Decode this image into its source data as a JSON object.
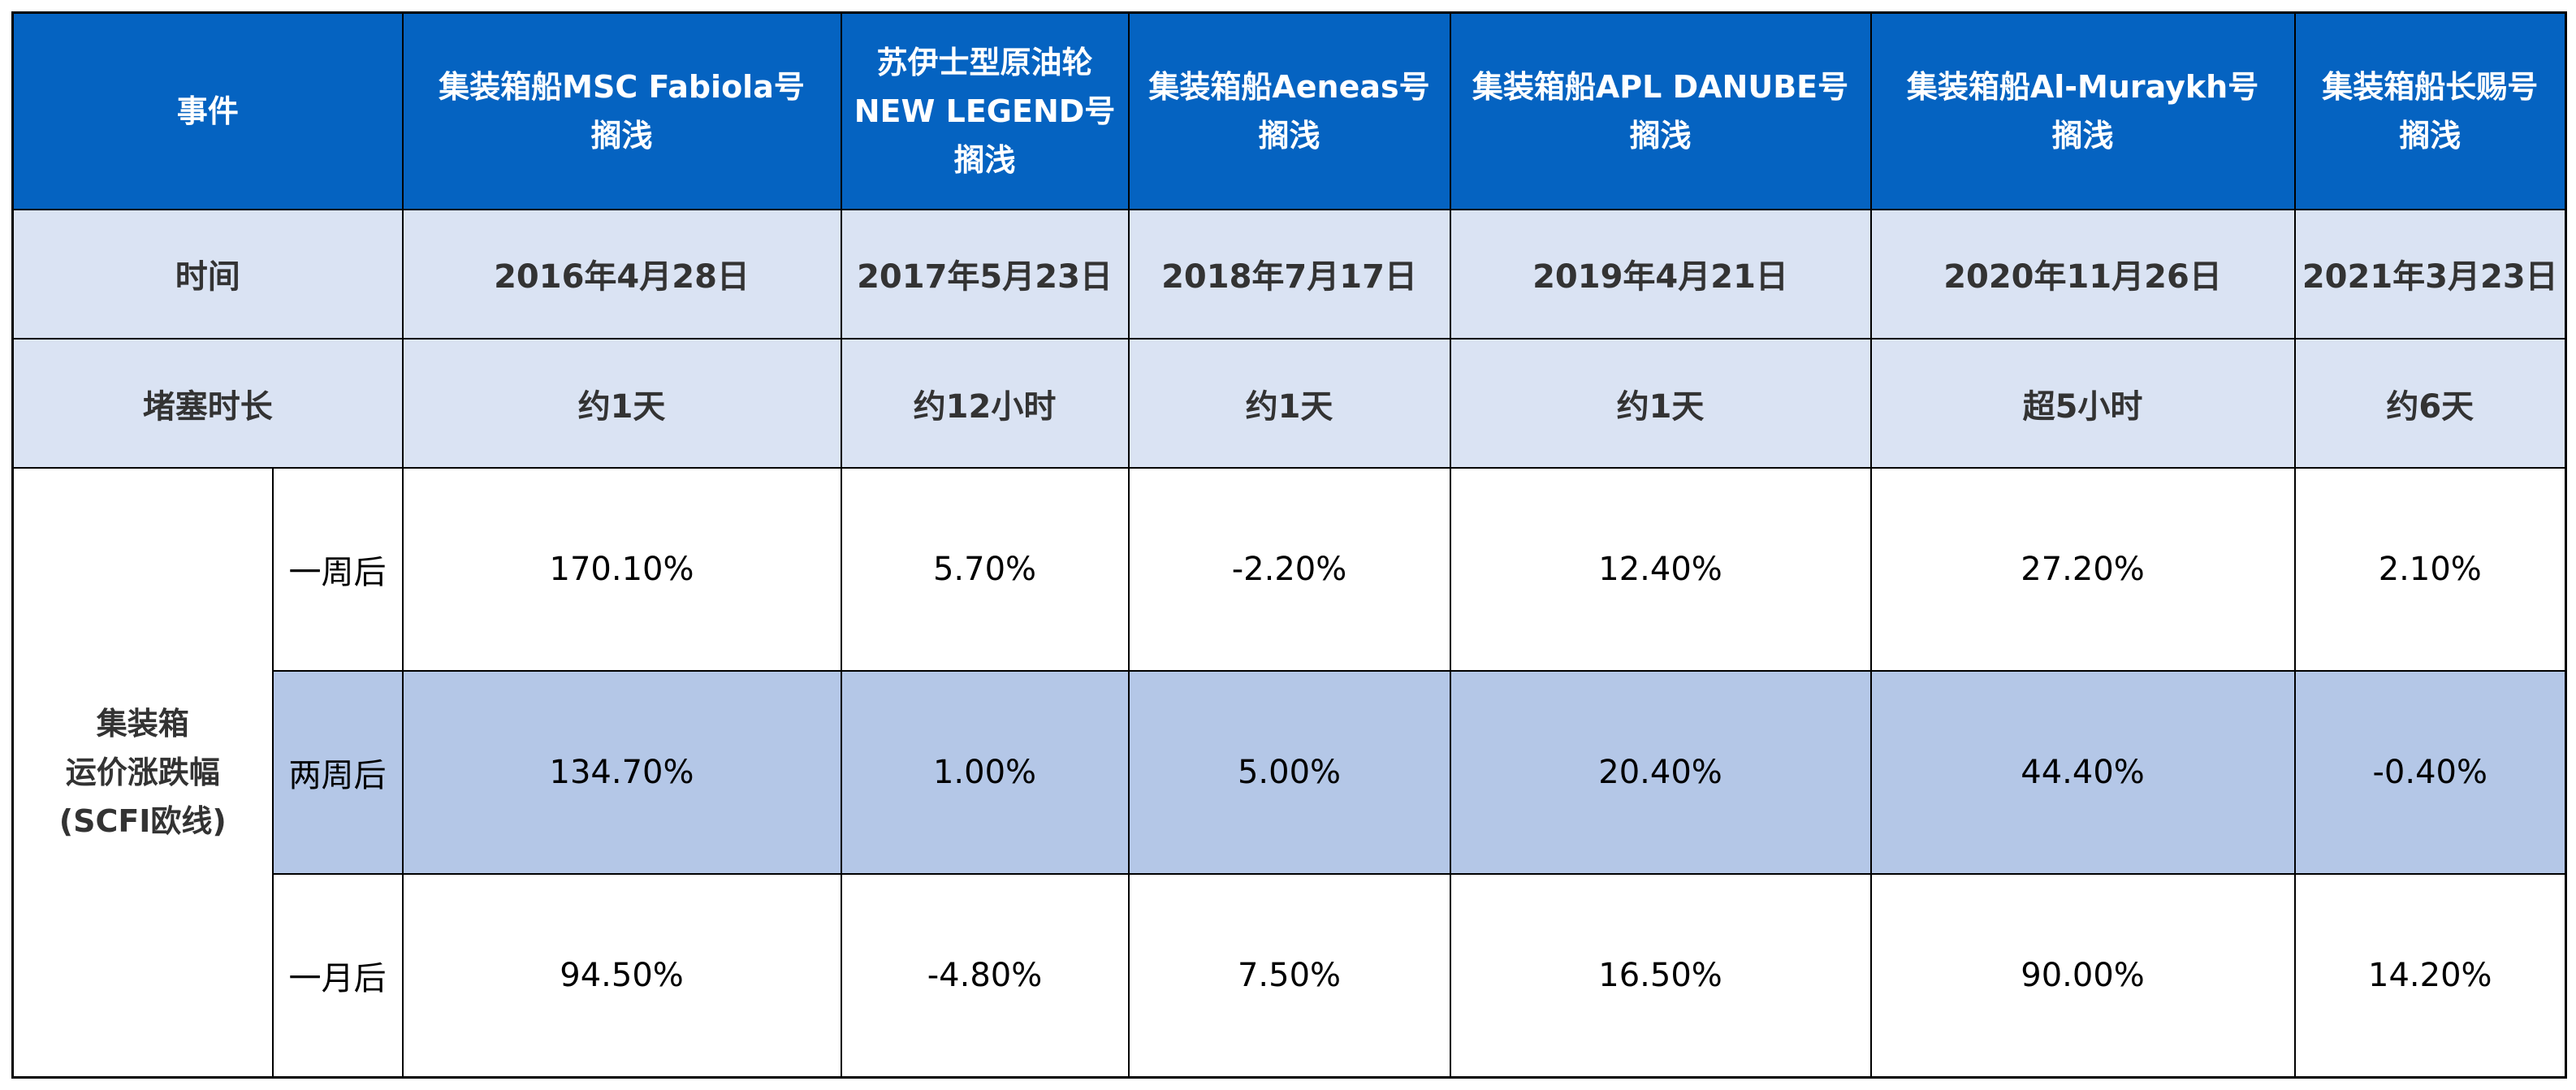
{
  "header": {
    "event_label": "事件",
    "columns": [
      "集装箱船MSC Fabiola号\n搁浅",
      "苏伊士型原油轮\nNEW LEGEND号\n搁浅",
      "集装箱船Aeneas号\n搁浅",
      "集装箱船APL DANUBE号\n搁浅",
      "集装箱船Al-Muraykh号\n搁浅",
      "集装箱船长赐号\n搁浅"
    ]
  },
  "time_row": {
    "label": "时间",
    "values": [
      "2016年4月28日",
      "2017年5月23日",
      "2018年7月17日",
      "2019年4月21日",
      "2020年11月26日",
      "2021年3月23日"
    ]
  },
  "duration_row": {
    "label": "堵塞时长",
    "values": [
      "约1天",
      "约12小时",
      "约1天",
      "约1天",
      "超5小时",
      "约6天"
    ]
  },
  "freight": {
    "group_label": "集装箱\n运价涨跌幅\n(SCFI欧线)",
    "rows": [
      {
        "period": "一周后",
        "values": [
          "170.10%",
          "5.70%",
          "-2.20%",
          "12.40%",
          "27.20%",
          "2.10%"
        ]
      },
      {
        "period": "两周后",
        "values": [
          "134.70%",
          "1.00%",
          "5.00%",
          "20.40%",
          "44.40%",
          "-0.40%"
        ]
      },
      {
        "period": "一月后",
        "values": [
          "94.50%",
          "-4.80%",
          "7.50%",
          "16.50%",
          "90.00%",
          "14.20%"
        ]
      }
    ]
  },
  "colors": {
    "header_bg": "#0563c1",
    "subheader_bg": "#dae3f3",
    "alt_row_bg": "#b4c7e7"
  }
}
